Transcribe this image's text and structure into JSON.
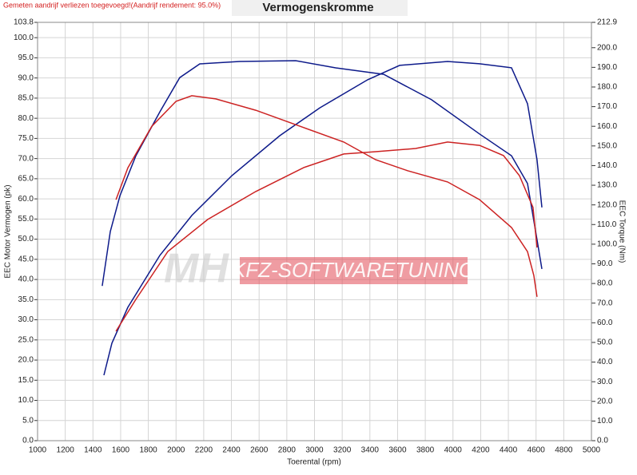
{
  "chart_data": {
    "type": "line",
    "title": "Vermogenskromme",
    "note": "Gemeten aandrijf verliezen toegevoegd!(Aandrijf rendement: 95.0%)",
    "watermark": [
      "MH",
      "KFZ-SOFTWARETUNING"
    ],
    "xlabel": "Toerental (rpm)",
    "ylabel": "EEC Motor Vermogen (pk)",
    "y2label": "EEC Torque (Nm)",
    "xlim": [
      1000,
      5000
    ],
    "xticks": [
      1000,
      1200,
      1400,
      1600,
      1800,
      2000,
      2200,
      2400,
      2600,
      2800,
      3000,
      3200,
      3400,
      3600,
      3800,
      4000,
      4200,
      4400,
      4600,
      4800,
      5000
    ],
    "ylim": [
      0,
      103.8
    ],
    "yticks": [
      {
        "value": 0,
        "label": "0.0"
      },
      {
        "value": 5,
        "label": "5.0"
      },
      {
        "value": 10,
        "label": "10.0"
      },
      {
        "value": 15,
        "label": "15.0"
      },
      {
        "value": 20,
        "label": "20.0"
      },
      {
        "value": 25,
        "label": "25.0"
      },
      {
        "value": 30,
        "label": "30.0"
      },
      {
        "value": 35,
        "label": "35.0"
      },
      {
        "value": 40,
        "label": "40.0"
      },
      {
        "value": 45,
        "label": "45.0"
      },
      {
        "value": 50,
        "label": "50.0"
      },
      {
        "value": 55,
        "label": "55.0"
      },
      {
        "value": 60,
        "label": "60.0"
      },
      {
        "value": 65,
        "label": "65.0"
      },
      {
        "value": 70,
        "label": "70.0"
      },
      {
        "value": 75,
        "label": "75.0"
      },
      {
        "value": 80,
        "label": "80.0"
      },
      {
        "value": 85,
        "label": "85.0"
      },
      {
        "value": 90,
        "label": "90.0"
      },
      {
        "value": 95,
        "label": "95.0"
      },
      {
        "value": 100,
        "label": "100.0"
      },
      {
        "value": 103.8,
        "label": "103.8"
      }
    ],
    "y2lim": [
      0,
      212.9
    ],
    "y2ticks": [
      {
        "value": 0,
        "label": "0.0"
      },
      {
        "value": 10,
        "label": "10.0"
      },
      {
        "value": 20,
        "label": "20.0"
      },
      {
        "value": 30,
        "label": "30.0"
      },
      {
        "value": 40,
        "label": "40.0"
      },
      {
        "value": 50,
        "label": "50.0"
      },
      {
        "value": 60,
        "label": "60.0"
      },
      {
        "value": 70,
        "label": "70.0"
      },
      {
        "value": 80,
        "label": "80.0"
      },
      {
        "value": 90,
        "label": "90.0"
      },
      {
        "value": 100,
        "label": "100.0"
      },
      {
        "value": 110,
        "label": "110.0"
      },
      {
        "value": 120,
        "label": "120.0"
      },
      {
        "value": 130,
        "label": "130.0"
      },
      {
        "value": 140,
        "label": "140.0"
      },
      {
        "value": 150,
        "label": "150.0"
      },
      {
        "value": 160,
        "label": "160.0"
      },
      {
        "value": 170,
        "label": "170.0"
      },
      {
        "value": 180,
        "label": "180.0"
      },
      {
        "value": 190,
        "label": "190.0"
      },
      {
        "value": 200,
        "label": "200.0"
      },
      {
        "value": 212.9,
        "label": "212.9"
      }
    ],
    "grid": true,
    "series": [
      {
        "color": "#0d1a8a",
        "axis": "y",
        "x": [
          1467,
          1525,
          1595,
          1710,
          1883,
          2027,
          2172,
          2460,
          2864,
          3153,
          3500,
          3845,
          4192,
          4423,
          4538,
          4607,
          4642
        ],
        "values": [
          38.4,
          51.9,
          60.8,
          70.7,
          81.6,
          90.1,
          93.5,
          94.1,
          94.3,
          92.5,
          90.9,
          84.6,
          76.1,
          70.7,
          63.8,
          49.9,
          42.6
        ]
      },
      {
        "color": "#0d1a8a",
        "axis": "y2",
        "x": [
          1479,
          1537,
          1652,
          1883,
          2114,
          2403,
          2749,
          3038,
          3384,
          3615,
          3961,
          4192,
          4423,
          4538,
          4607,
          4642
        ],
        "values": [
          33.3,
          49.6,
          67.9,
          94.3,
          114.6,
          134.9,
          155.2,
          169.4,
          183.7,
          191.0,
          193.0,
          191.8,
          189.8,
          171.5,
          143.0,
          118.7
        ]
      },
      {
        "color": "#cc2222",
        "axis": "y",
        "x": [
          1566,
          1652,
          1825,
          2000,
          2114,
          2287,
          2576,
          2922,
          3211,
          3442,
          3672,
          3961,
          4192,
          4423,
          4538,
          4584,
          4607
        ],
        "values": [
          59.8,
          67.7,
          78.0,
          84.2,
          85.6,
          84.8,
          82.0,
          77.7,
          74.1,
          69.7,
          67.0,
          64.2,
          59.8,
          52.9,
          46.9,
          41.0,
          35.7
        ]
      },
      {
        "color": "#cc2222",
        "axis": "y2",
        "x": [
          1566,
          1710,
          1941,
          2229,
          2576,
          2922,
          3211,
          3442,
          3730,
          3961,
          4192,
          4365,
          4480,
          4578,
          4607
        ],
        "values": [
          55.7,
          71.9,
          96.3,
          112.6,
          126.8,
          139.0,
          145.9,
          147.1,
          148.7,
          152.0,
          150.3,
          145.1,
          134.9,
          118.7,
          98.3
        ]
      }
    ]
  }
}
